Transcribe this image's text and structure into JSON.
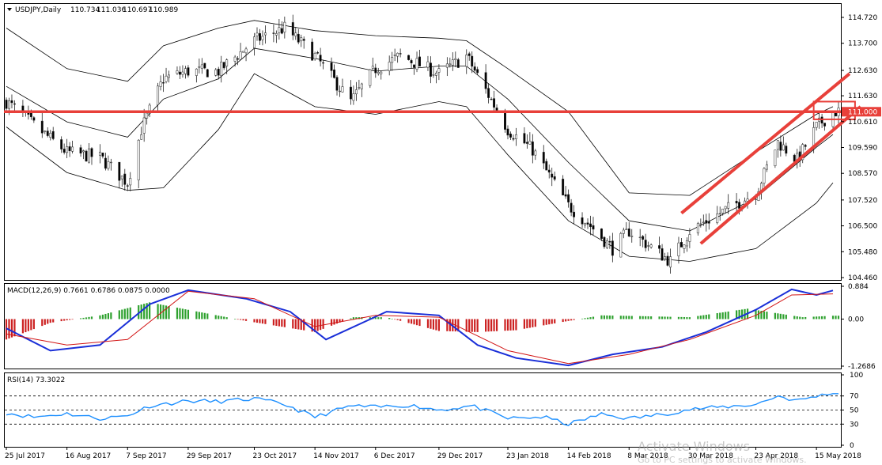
{
  "chart_data": [
    {
      "type": "candlestick",
      "symbol": "USDJPY,Daily",
      "ohlc_readout": [
        "110.734",
        "111.036",
        "110.697",
        "110.989"
      ],
      "y_ticks": [
        "114.720",
        "113.700",
        "112.630",
        "111.630",
        "110.610",
        "109.590",
        "108.570",
        "107.520",
        "106.500",
        "105.480",
        "104.460"
      ],
      "ylim": [
        104.46,
        114.72
      ],
      "price_marker": "111.000",
      "x_ticks": [
        "25 Jul 2017",
        "16 Aug 2017",
        "7 Sep 2017",
        "29 Sep 2017",
        "23 Oct 2017",
        "14 Nov 2017",
        "6 Dec 2017",
        "29 Dec 2017",
        "23 Jan 2018",
        "14 Feb 2018",
        "8 Mar 2018",
        "30 Mar 2018",
        "23 Apr 2018",
        "15 May 2018"
      ],
      "xlim": [
        "2017-07-25",
        "2018-05-23"
      ],
      "series": [
        {
          "role": "close-path",
          "x": [
            "2017-07-25",
            "2017-08-07",
            "2017-08-16",
            "2017-08-28",
            "2017-09-07",
            "2017-09-12",
            "2017-09-20",
            "2017-09-29",
            "2017-10-10",
            "2017-10-23",
            "2017-11-03",
            "2017-11-14",
            "2017-11-27",
            "2017-12-06",
            "2017-12-15",
            "2017-12-29",
            "2018-01-08",
            "2018-01-23",
            "2018-02-01",
            "2018-02-14",
            "2018-02-22",
            "2018-03-02",
            "2018-03-08",
            "2018-03-23",
            "2018-03-30",
            "2018-04-10",
            "2018-04-23",
            "2018-05-01",
            "2018-05-08",
            "2018-05-15",
            "2018-05-21"
          ],
          "y": [
            111.4,
            110.2,
            109.4,
            109.2,
            108.2,
            110.3,
            112.3,
            112.6,
            112.6,
            113.8,
            114.3,
            113.2,
            111.4,
            112.7,
            113.2,
            112.5,
            113.2,
            110.3,
            109.5,
            107.3,
            106.5,
            105.6,
            106.3,
            105.1,
            106.3,
            107.0,
            107.8,
            109.8,
            109.1,
            110.4,
            111.0
          ]
        },
        {
          "role": "bollinger-upper",
          "x": [
            "2017-07-25",
            "2017-08-16",
            "2017-09-07",
            "2017-09-20",
            "2017-10-10",
            "2017-10-23",
            "2017-11-14",
            "2017-12-06",
            "2017-12-29",
            "2018-01-08",
            "2018-01-23",
            "2018-02-14",
            "2018-03-08",
            "2018-03-30",
            "2018-04-23",
            "2018-05-15",
            "2018-05-21"
          ],
          "y": [
            114.3,
            112.7,
            112.2,
            113.6,
            114.3,
            114.6,
            114.2,
            114.0,
            113.9,
            113.8,
            112.7,
            111.0,
            107.8,
            107.7,
            109.4,
            110.9,
            111.2
          ]
        },
        {
          "role": "bollinger-middle",
          "x": [
            "2017-07-25",
            "2017-08-16",
            "2017-09-07",
            "2017-09-20",
            "2017-10-10",
            "2017-10-23",
            "2017-11-14",
            "2017-12-06",
            "2017-12-29",
            "2018-01-08",
            "2018-01-23",
            "2018-02-14",
            "2018-03-08",
            "2018-03-30",
            "2018-04-23",
            "2018-05-15",
            "2018-05-21"
          ],
          "y": [
            112.0,
            110.6,
            110.0,
            111.5,
            112.3,
            113.5,
            113.1,
            112.6,
            112.8,
            112.8,
            111.5,
            109.0,
            106.7,
            106.3,
            107.6,
            109.6,
            110.1
          ]
        },
        {
          "role": "bollinger-lower",
          "x": [
            "2017-07-25",
            "2017-08-16",
            "2017-09-07",
            "2017-09-20",
            "2017-10-10",
            "2017-10-23",
            "2017-11-14",
            "2017-12-06",
            "2017-12-29",
            "2018-01-08",
            "2018-01-23",
            "2018-02-14",
            "2018-03-08",
            "2018-03-30",
            "2018-04-23",
            "2018-05-15",
            "2018-05-21"
          ],
          "y": [
            110.4,
            108.6,
            107.9,
            108.0,
            110.3,
            112.5,
            111.2,
            110.9,
            111.4,
            111.2,
            109.3,
            106.7,
            105.3,
            105.1,
            105.6,
            107.4,
            108.2
          ]
        },
        {
          "role": "horizontal-level",
          "y": 111.0
        },
        {
          "role": "channel-top",
          "x": [
            "2018-03-27",
            "2018-05-27"
          ],
          "y": [
            107.0,
            112.5
          ]
        },
        {
          "role": "channel-bottom",
          "x": [
            "2018-04-03",
            "2018-05-31"
          ],
          "y": [
            105.8,
            111.2
          ]
        },
        {
          "role": "zone",
          "x": [
            "2018-05-14",
            "2018-05-29"
          ],
          "y": [
            110.7,
            111.4
          ]
        }
      ]
    },
    {
      "type": "bar",
      "title": "MACD(12,26,9) 0.7661 0.6786 0.0875 0.0000",
      "y_ticks": [
        "0.884",
        "0.00",
        "-1.2686"
      ],
      "ylim": [
        -1.2686,
        0.884
      ],
      "series": [
        {
          "name": "histogram",
          "x": [
            "2017-07-25",
            "2017-08-10",
            "2017-08-28",
            "2017-09-15",
            "2017-09-29",
            "2017-10-20",
            "2017-11-14",
            "2017-11-28",
            "2017-12-10",
            "2017-12-29",
            "2018-01-12",
            "2018-01-26",
            "2018-02-14",
            "2018-02-26",
            "2018-03-12",
            "2018-03-30",
            "2018-04-20",
            "2018-05-10",
            "2018-05-21"
          ],
          "values": [
            -0.55,
            -0.1,
            0.1,
            0.45,
            0.25,
            -0.05,
            -0.35,
            0.05,
            0.05,
            -0.32,
            -0.35,
            -0.3,
            -0.05,
            0.1,
            0.08,
            0.05,
            0.28,
            0.05,
            0.09
          ]
        },
        {
          "name": "main",
          "x": [
            "2017-07-25",
            "2017-08-10",
            "2017-08-28",
            "2017-09-15",
            "2017-09-29",
            "2017-10-20",
            "2017-11-05",
            "2017-11-18",
            "2017-12-10",
            "2017-12-29",
            "2018-01-12",
            "2018-01-26",
            "2018-02-14",
            "2018-03-02",
            "2018-03-20",
            "2018-04-05",
            "2018-04-23",
            "2018-05-06",
            "2018-05-15",
            "2018-05-21"
          ],
          "values": [
            -0.25,
            -0.85,
            -0.7,
            0.4,
            0.78,
            0.55,
            0.2,
            -0.55,
            0.2,
            0.1,
            -0.7,
            -1.05,
            -1.25,
            -0.95,
            -0.75,
            -0.35,
            0.25,
            0.8,
            0.65,
            0.77
          ]
        },
        {
          "name": "signal",
          "x": [
            "2017-07-25",
            "2017-08-16",
            "2017-09-07",
            "2017-09-29",
            "2017-10-23",
            "2017-11-14",
            "2017-12-06",
            "2017-12-29",
            "2018-01-23",
            "2018-02-14",
            "2018-03-08",
            "2018-03-30",
            "2018-04-23",
            "2018-05-06",
            "2018-05-21"
          ],
          "values": [
            -0.4,
            -0.7,
            -0.55,
            0.75,
            0.55,
            -0.2,
            0.1,
            0.05,
            -0.85,
            -1.2,
            -0.95,
            -0.55,
            0.1,
            0.65,
            0.68
          ]
        }
      ]
    },
    {
      "type": "line",
      "title": "RSI(14) 73.3022",
      "y_ticks": [
        "100",
        "70",
        "50",
        "30",
        "0"
      ],
      "ylim": [
        0,
        100
      ],
      "levels": [
        70,
        50,
        30
      ],
      "series": [
        {
          "name": "RSI",
          "x": [
            "2017-07-25",
            "2017-08-04",
            "2017-08-16",
            "2017-08-28",
            "2017-09-07",
            "2017-09-15",
            "2017-09-29",
            "2017-10-10",
            "2017-10-23",
            "2017-11-03",
            "2017-11-14",
            "2017-11-27",
            "2017-12-06",
            "2017-12-18",
            "2017-12-29",
            "2018-01-10",
            "2018-01-23",
            "2018-02-05",
            "2018-02-14",
            "2018-02-26",
            "2018-03-08",
            "2018-03-20",
            "2018-03-30",
            "2018-04-10",
            "2018-04-23",
            "2018-05-01",
            "2018-05-08",
            "2018-05-15",
            "2018-05-21"
          ],
          "values": [
            46,
            40,
            45,
            38,
            42,
            56,
            63,
            62,
            66,
            58,
            40,
            56,
            54,
            57,
            50,
            56,
            38,
            40,
            30,
            44,
            38,
            44,
            51,
            54,
            58,
            70,
            63,
            70,
            73.3
          ]
        }
      ]
    }
  ],
  "watermark": {
    "title": "Activate Windows",
    "subtitle": "Go to PC settings to activate Windows."
  },
  "colors": {
    "background": "#ffffff",
    "grid": "#000000",
    "up": "#2ea12e",
    "down": "#cc2020",
    "level": "#e8403a",
    "band": "#000000",
    "macd_main": "#1a2fd8",
    "macd_signal": "#d21414",
    "rsi": "#1e90ff",
    "marker_bg": "#e8403a"
  }
}
